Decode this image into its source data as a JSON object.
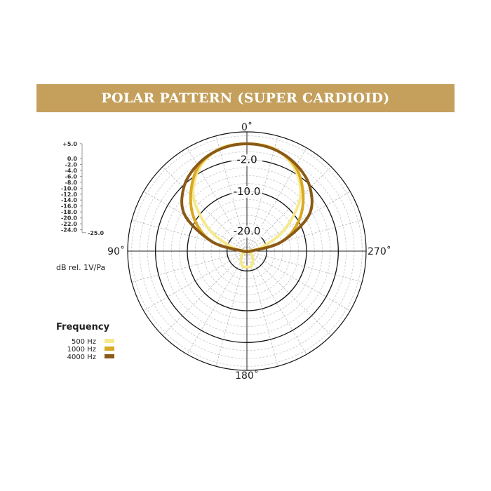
{
  "chart_data": {
    "type": "polar",
    "title": "POLAR PATTERN (SUPER CARDIOID)",
    "angle_labels": [
      "0˚",
      "90˚",
      "180˚",
      "270˚"
    ],
    "ring_labels": [
      "-2.0",
      "-10.0",
      "-20.0"
    ],
    "r_range_db": [
      -25,
      5
    ],
    "scale_ticks": [
      "+5.0",
      "0.0",
      "-2.0",
      "-4.0",
      "-6.0",
      "-8.0",
      "-10.0",
      "-12.0",
      "-14.0",
      "-16.0",
      "-18.0",
      "-20.0",
      "-22.0",
      "-24.0"
    ],
    "scale_tick_values": [
      5,
      0,
      -2,
      -4,
      -6,
      -8,
      -10,
      -12,
      -14,
      -16,
      -18,
      -20,
      -22,
      -24
    ],
    "scale_min_label": "-25.0",
    "unit_label": "dB rel. 1V/Pa",
    "legend_title": "Frequency",
    "angles_deg": [
      0,
      15,
      30,
      45,
      60,
      75,
      90,
      105,
      120,
      135,
      150,
      165,
      180
    ],
    "series": [
      {
        "name": "500 Hz",
        "color": "#f5e98c",
        "values": [
          2,
          1.7,
          -1,
          -6,
          -14,
          -21,
          -25,
          -25,
          -24,
          -23,
          -22,
          -21,
          -21
        ]
      },
      {
        "name": "1000 Hz",
        "color": "#d9a925",
        "values": [
          2,
          1.5,
          -0.5,
          -5,
          -10,
          -16,
          -24,
          -25,
          -25,
          -25,
          -25,
          -25,
          -25
        ]
      },
      {
        "name": "4000 Hz",
        "color": "#8b5a17",
        "values": [
          2,
          1.5,
          0,
          -2.5,
          -7,
          -16,
          -24,
          -25,
          -25,
          -25,
          -25,
          -25,
          -25
        ]
      }
    ],
    "legend_position": "bottom-left",
    "header_color": "#c4a05c"
  }
}
